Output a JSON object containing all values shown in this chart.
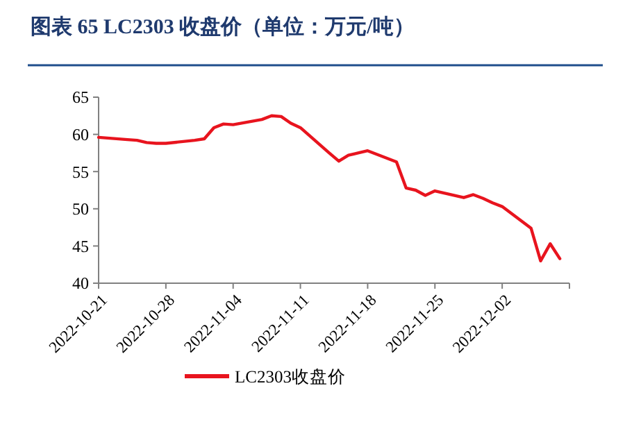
{
  "chart_data": {
    "type": "line",
    "title": "图表 65   LC2303 收盘价（单位：万元/吨）",
    "x": [
      "2022-10-21",
      "2022-10-24",
      "2022-10-25",
      "2022-10-26",
      "2022-10-27",
      "2022-10-28",
      "2022-10-31",
      "2022-11-01",
      "2022-11-02",
      "2022-11-03",
      "2022-11-04",
      "2022-11-07",
      "2022-11-08",
      "2022-11-09",
      "2022-11-10",
      "2022-11-11",
      "2022-11-14",
      "2022-11-15",
      "2022-11-16",
      "2022-11-17",
      "2022-11-18",
      "2022-11-21",
      "2022-11-22",
      "2022-11-23",
      "2022-11-24",
      "2022-11-25",
      "2022-11-28",
      "2022-11-29",
      "2022-11-30",
      "2022-12-01",
      "2022-12-02",
      "2022-12-05",
      "2022-12-06",
      "2022-12-07",
      "2022-12-08"
    ],
    "series": [
      {
        "name": "LC2303收盘价",
        "color": "#e8141e",
        "values": [
          59.6,
          59.3,
          59.2,
          58.9,
          58.8,
          58.8,
          59.2,
          59.4,
          60.9,
          61.4,
          61.3,
          62.0,
          62.5,
          62.4,
          61.5,
          60.9,
          57.5,
          56.4,
          57.2,
          57.5,
          57.8,
          56.3,
          52.8,
          52.5,
          51.8,
          52.4,
          51.5,
          51.9,
          51.4,
          50.8,
          50.3,
          47.4,
          43.0,
          45.3,
          43.3
        ]
      }
    ],
    "xlim": [
      "2022-10-21",
      "2022-12-09"
    ],
    "xticks": [
      "2022-10-21",
      "2022-10-28",
      "2022-11-04",
      "2022-11-11",
      "2022-11-18",
      "2022-11-25",
      "2022-12-02"
    ],
    "ylim": [
      40,
      65
    ],
    "yticks": [
      40,
      45,
      50,
      55,
      60,
      65
    ],
    "grid": false,
    "legend": "bottom",
    "marker": "none",
    "line_style": "solid"
  }
}
